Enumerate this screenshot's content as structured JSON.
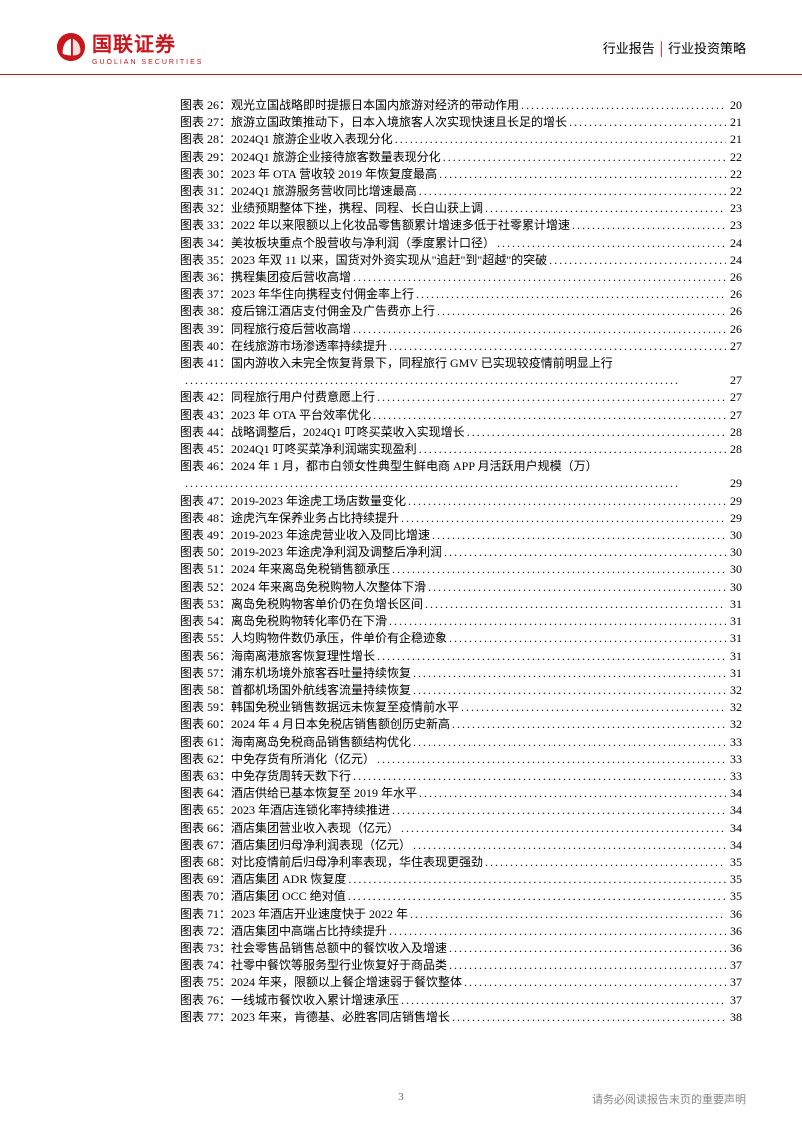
{
  "header": {
    "logo_cn": "国联证券",
    "logo_en": "GUOLIAN SECURITIES",
    "right_a": "行业报告",
    "right_b": "行业投资策略"
  },
  "logo_colors": {
    "circle": "#c8161d",
    "bg": "#ffffff"
  },
  "toc": [
    {
      "n": "26",
      "t": "观光立国战略即时提振日本国内旅游对经济的带动作用",
      "p": "20"
    },
    {
      "n": "27",
      "t": "旅游立国政策推动下，日本入境旅客人次实现快速且长足的增长",
      "p": "21"
    },
    {
      "n": "28",
      "t": "2024Q1 旅游企业收入表现分化",
      "p": "21"
    },
    {
      "n": "29",
      "t": "2024Q1 旅游企业接待旅客数量表现分化",
      "p": "22"
    },
    {
      "n": "30",
      "t": "2023 年 OTA 营收较 2019 年恢复度最高",
      "p": "22"
    },
    {
      "n": "31",
      "t": "2024Q1 旅游服务营收同比增速最高",
      "p": "22"
    },
    {
      "n": "32",
      "t": "业绩预期整体下挫，携程、同程、长白山获上调",
      "p": "23"
    },
    {
      "n": "33",
      "t": "2022 年以来限额以上化妆品零售额累计增速多低于社零累计增速",
      "p": "23"
    },
    {
      "n": "34",
      "t": "美妆板块重点个股营收与净利润（季度累计口径）",
      "p": "24"
    },
    {
      "n": "35",
      "t": "2023 年双 11 以来，国货对外资实现从\"追赶\"到\"超越\"的突破",
      "p": "24"
    },
    {
      "n": "36",
      "t": "携程集团疫后营收高增",
      "p": "26"
    },
    {
      "n": "37",
      "t": "2023 年华住向携程支付佣金率上行",
      "p": "26"
    },
    {
      "n": "38",
      "t": "疫后锦江酒店支付佣金及广告费亦上行",
      "p": "26"
    },
    {
      "n": "39",
      "t": "同程旅行疫后营收高增",
      "p": "26"
    },
    {
      "n": "40",
      "t": "在线旅游市场渗透率持续提升",
      "p": "27"
    },
    {
      "n": "41",
      "t": "国内游收入未完全恢复背景下，同程旅行 GMV 已实现较疫情前明显上行",
      "p": "27",
      "wrap": true
    },
    {
      "n": "42",
      "t": "同程旅行用户付费意愿上行",
      "p": "27"
    },
    {
      "n": "43",
      "t": "2023 年 OTA 平台效率优化",
      "p": "27"
    },
    {
      "n": "44",
      "t": "战略调整后，2024Q1 叮咚买菜收入实现增长",
      "p": "28"
    },
    {
      "n": "45",
      "t": "2024Q1 叮咚买菜净利润端实现盈利",
      "p": "28"
    },
    {
      "n": "46",
      "t": "2024 年 1 月，都市白领女性典型生鲜电商 APP 月活跃用户规模（万）",
      "p": "29",
      "wrap": true
    },
    {
      "n": "47",
      "t": "2019-2023 年途虎工场店数量变化",
      "p": "29"
    },
    {
      "n": "48",
      "t": "途虎汽车保养业务占比持续提升",
      "p": "29"
    },
    {
      "n": "49",
      "t": "2019-2023 年途虎营业收入及同比增速",
      "p": "30"
    },
    {
      "n": "50",
      "t": "2019-2023 年途虎净利润及调整后净利润",
      "p": "30"
    },
    {
      "n": "51",
      "t": "2024 年来离岛免税销售额承压",
      "p": "30"
    },
    {
      "n": "52",
      "t": "2024 年来离岛免税购物人次整体下滑",
      "p": "30"
    },
    {
      "n": "53",
      "t": "离岛免税购物客单价仍在负增长区间",
      "p": "31"
    },
    {
      "n": "54",
      "t": "离岛免税购物转化率仍在下滑",
      "p": "31"
    },
    {
      "n": "55",
      "t": "人均购物件数仍承压，件单价有企稳迹象",
      "p": "31"
    },
    {
      "n": "56",
      "t": "海南离港旅客恢复理性增长",
      "p": "31"
    },
    {
      "n": "57",
      "t": "浦东机场境外旅客吞吐量持续恢复",
      "p": "31"
    },
    {
      "n": "58",
      "t": "首都机场国外航线客流量持续恢复",
      "p": "32"
    },
    {
      "n": "59",
      "t": "韩国免税业销售数据远未恢复至疫情前水平",
      "p": "32"
    },
    {
      "n": "60",
      "t": "2024 年 4 月日本免税店销售额创历史新高",
      "p": "32"
    },
    {
      "n": "61",
      "t": "海南离岛免税商品销售额结构优化",
      "p": "33"
    },
    {
      "n": "62",
      "t": "中免存货有所消化（亿元）",
      "p": "33"
    },
    {
      "n": "63",
      "t": "中免存货周转天数下行",
      "p": "33"
    },
    {
      "n": "64",
      "t": "酒店供给已基本恢复至 2019 年水平",
      "p": "34"
    },
    {
      "n": "65",
      "t": "2023 年酒店连锁化率持续推进",
      "p": "34"
    },
    {
      "n": "66",
      "t": "酒店集团营业收入表现（亿元）",
      "p": "34"
    },
    {
      "n": "67",
      "t": "酒店集团归母净利润表现（亿元）",
      "p": "34"
    },
    {
      "n": "68",
      "t": "对比疫情前后归母净利率表现，华住表现更强劲",
      "p": "35"
    },
    {
      "n": "69",
      "t": "酒店集团 ADR 恢复度",
      "p": "35"
    },
    {
      "n": "70",
      "t": "酒店集团 OCC 绝对值",
      "p": "35"
    },
    {
      "n": "71",
      "t": "2023 年酒店开业速度快于 2022 年",
      "p": "36"
    },
    {
      "n": "72",
      "t": "酒店集团中高端占比持续提升",
      "p": "36"
    },
    {
      "n": "73",
      "t": "社会零售品销售总额中的餐饮收入及增速",
      "p": "36"
    },
    {
      "n": "74",
      "t": "社零中餐饮等服务型行业恢复好于商品类",
      "p": "37"
    },
    {
      "n": "75",
      "t": "2024 年来，限额以上餐企增速弱于餐饮整体",
      "p": "37"
    },
    {
      "n": "76",
      "t": "一线城市餐饮收入累计增速承压",
      "p": "37"
    },
    {
      "n": "77",
      "t": "2023 年来，肯德基、必胜客同店销售增长",
      "p": "38"
    }
  ],
  "label_prefix": "图表 ",
  "label_suffix": "：",
  "footer": {
    "page_no": "3",
    "disclaimer": "请务必阅读报告末页的重要声明"
  }
}
